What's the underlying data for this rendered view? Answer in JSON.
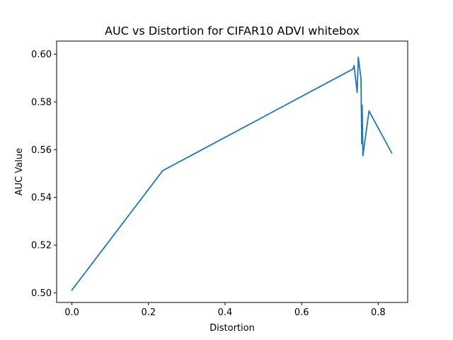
{
  "chart_data": {
    "type": "line",
    "title": "AUC vs Distortion for CIFAR10 ADVI whitebox",
    "xlabel": "Distortion",
    "ylabel": "AUC Value",
    "xlim": [
      -0.04,
      0.877
    ],
    "ylim": [
      0.496,
      0.6055
    ],
    "xticks": [
      {
        "value": 0.0,
        "label": "0.0"
      },
      {
        "value": 0.2,
        "label": "0.2"
      },
      {
        "value": 0.4,
        "label": "0.4"
      },
      {
        "value": 0.6,
        "label": "0.6"
      },
      {
        "value": 0.8,
        "label": "0.8"
      }
    ],
    "yticks": [
      {
        "value": 0.5,
        "label": "0.50"
      },
      {
        "value": 0.52,
        "label": "0.52"
      },
      {
        "value": 0.54,
        "label": "0.54"
      },
      {
        "value": 0.56,
        "label": "0.56"
      },
      {
        "value": 0.58,
        "label": "0.58"
      },
      {
        "value": 0.6,
        "label": "0.60"
      }
    ],
    "grid": false,
    "series": [
      {
        "color": "#1f77b4",
        "x": [
          0.0,
          0.237,
          0.734,
          0.737,
          0.745,
          0.748,
          0.755,
          0.757,
          0.758,
          0.76,
          0.776,
          0.835
        ],
        "y": [
          0.5012,
          0.5512,
          0.5938,
          0.5952,
          0.584,
          0.5987,
          0.5898,
          0.5625,
          0.5787,
          0.5575,
          0.5762,
          0.5587
        ]
      }
    ]
  }
}
